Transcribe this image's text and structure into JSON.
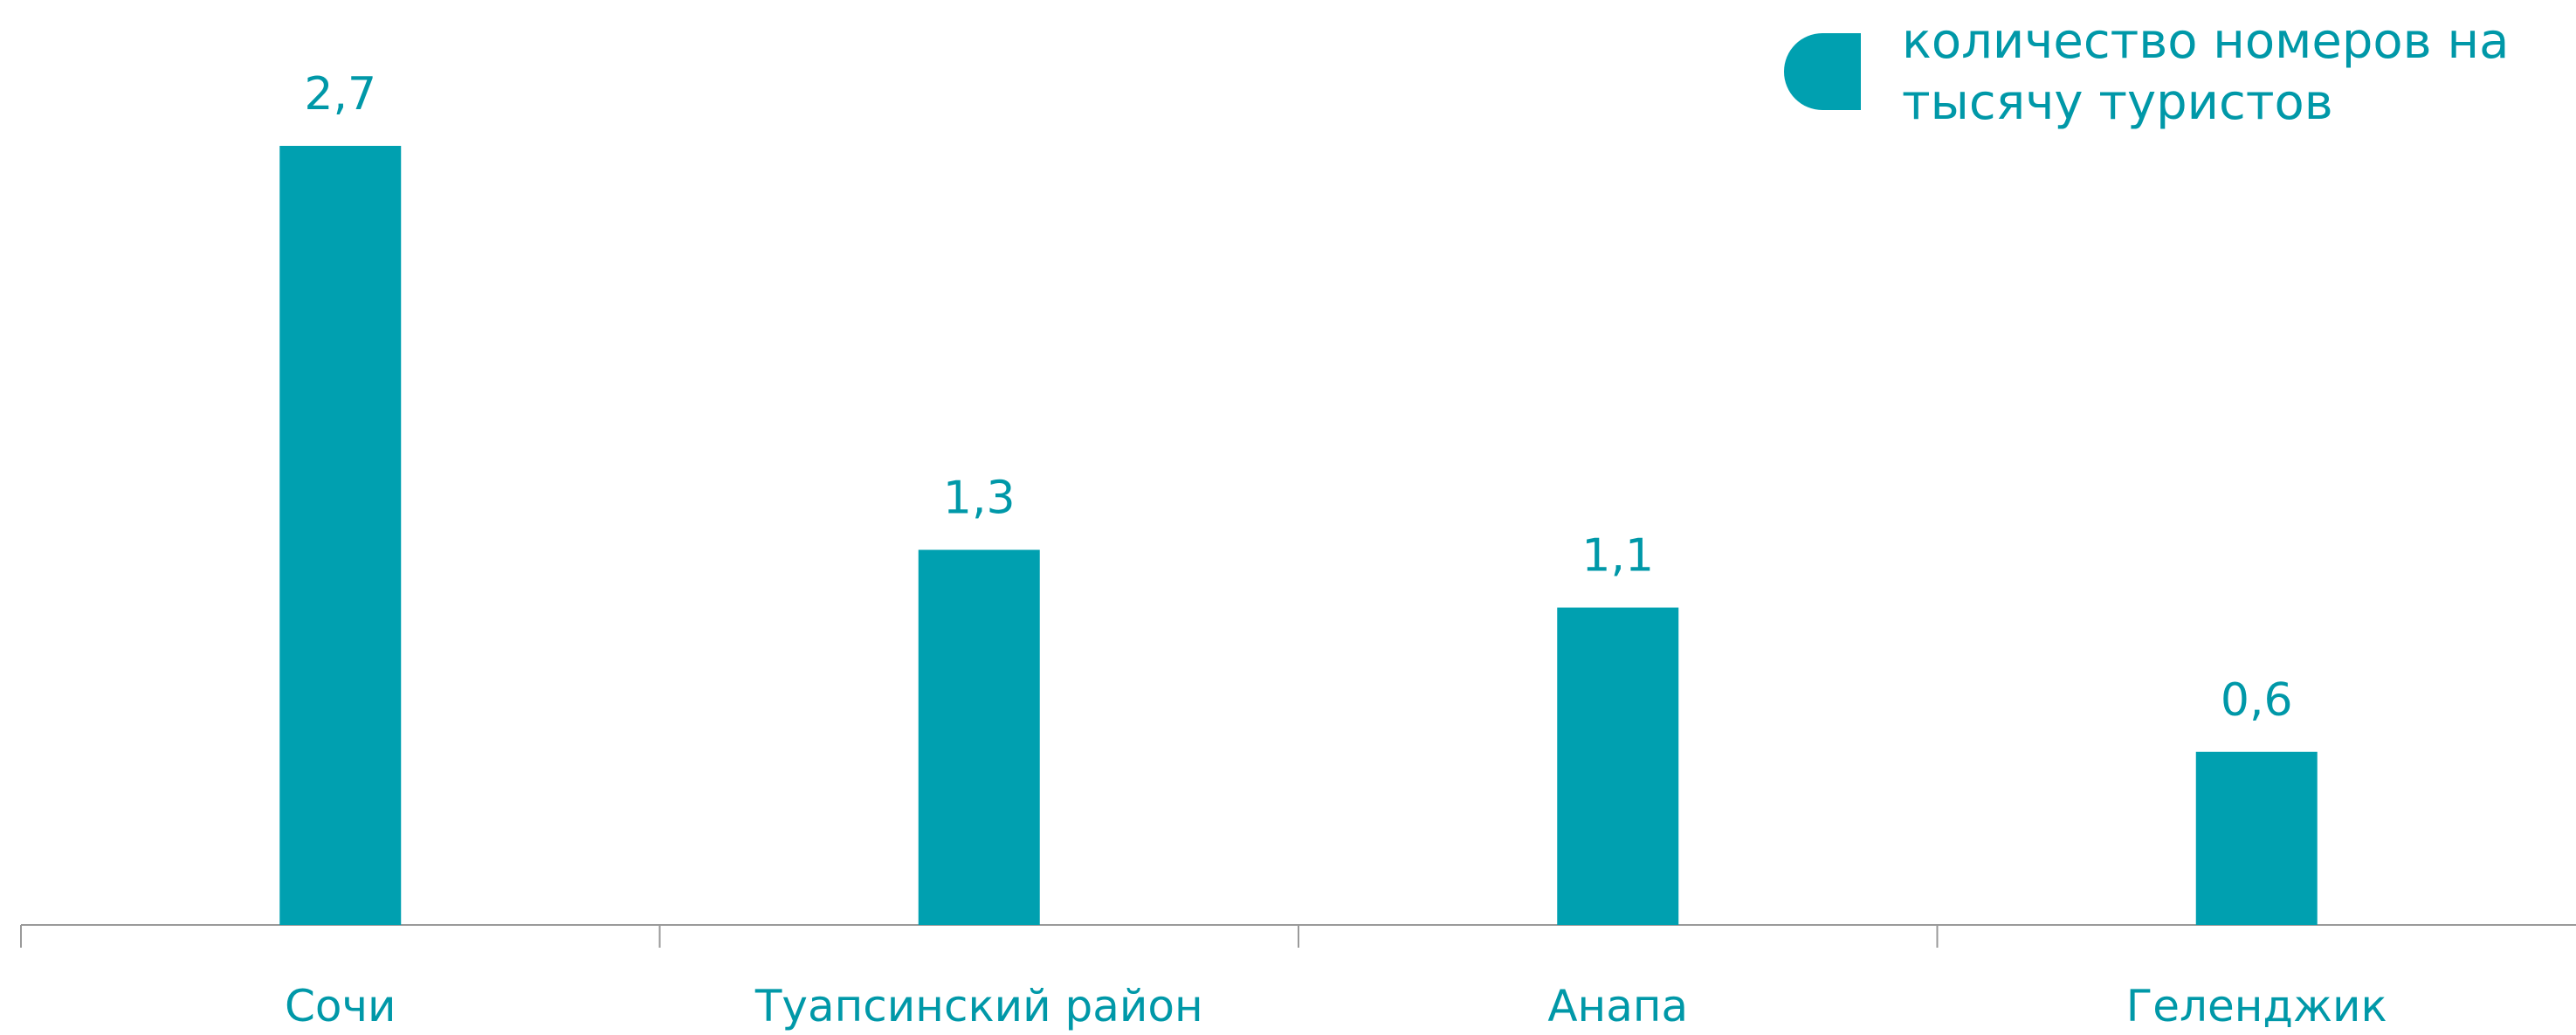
{
  "chart_data": {
    "type": "bar",
    "categories": [
      "Сочи",
      "Туапсинский район",
      "Анапа",
      "Геленджик"
    ],
    "series": [
      {
        "name": "количество номеров на тысячу туристов",
        "color": "#00a0b0",
        "values": [
          2.7,
          1.3,
          1.1,
          0.6
        ],
        "value_labels": [
          "2,7",
          "1,3",
          "1,1",
          "0,6"
        ]
      }
    ],
    "legend": "top-right"
  }
}
